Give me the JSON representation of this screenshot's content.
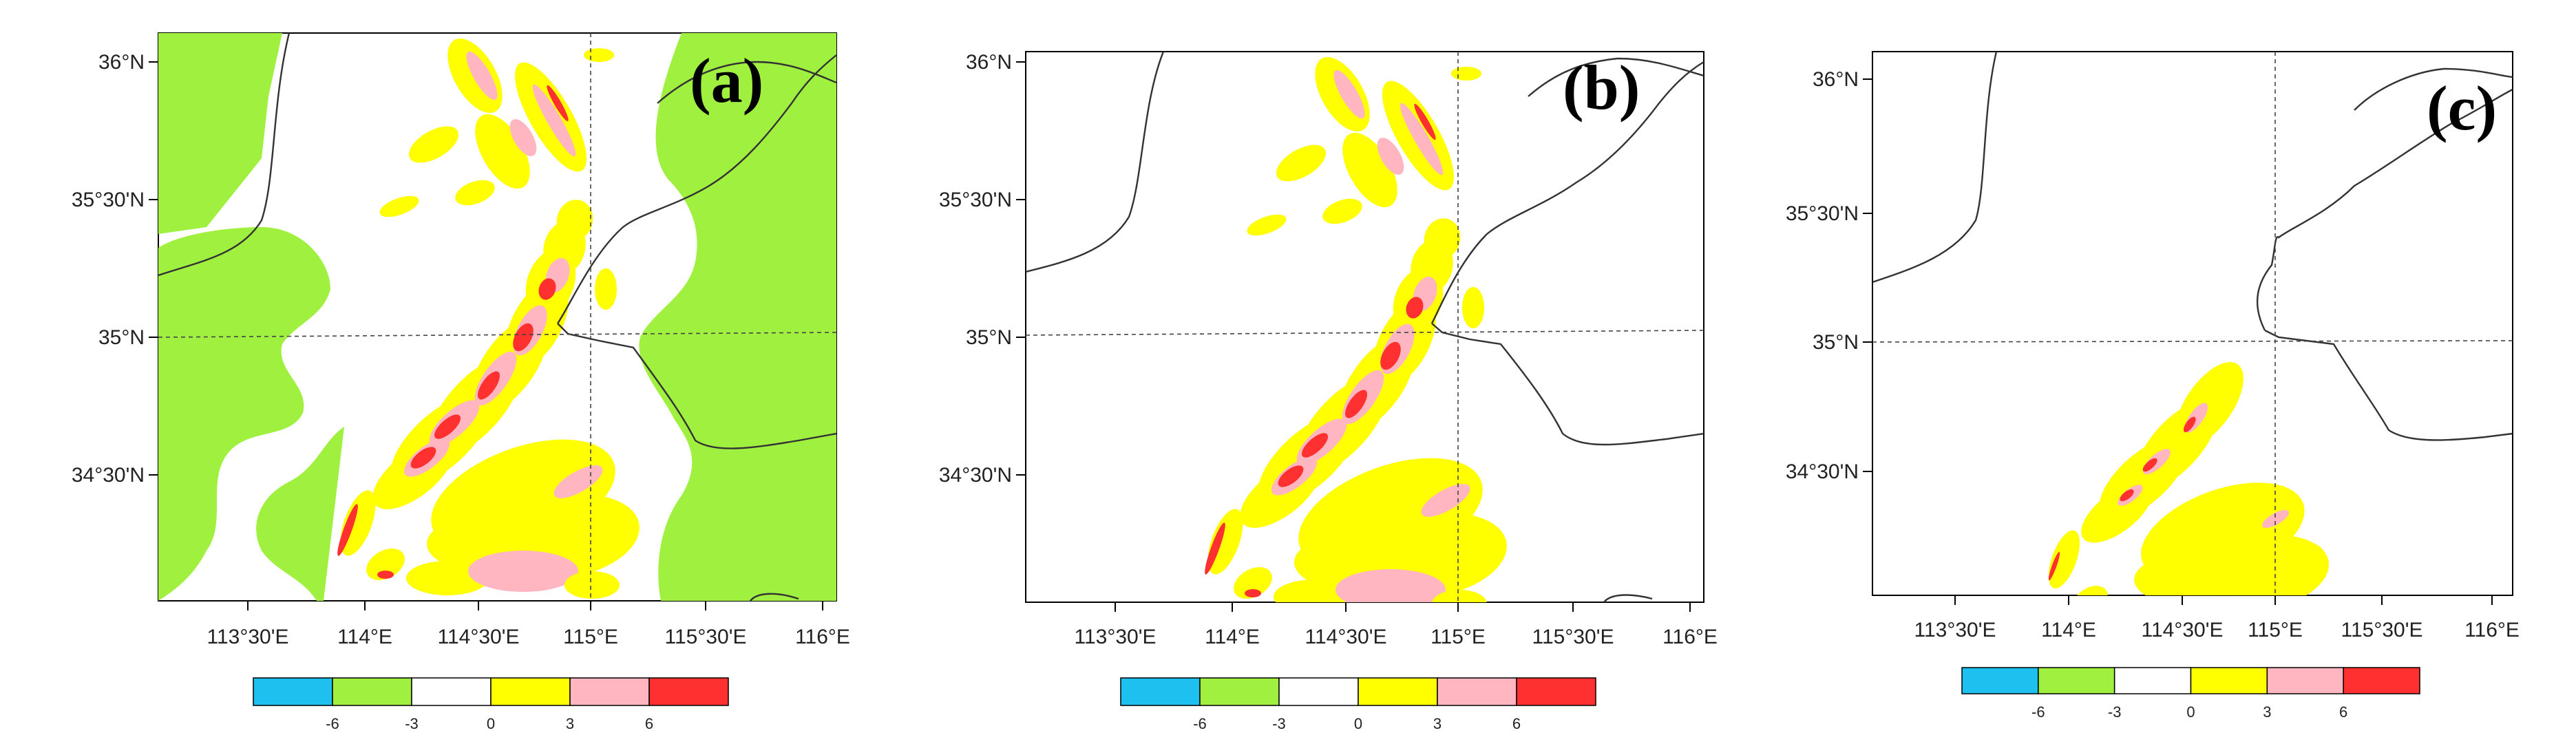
{
  "colorbar": {
    "colors": [
      "#1ec0f0",
      "#a0f040",
      "#ffffff",
      "#ffff00",
      "#ffb6c1",
      "#ff3030"
    ],
    "tick_labels": [
      "-6",
      "-3",
      "0",
      "3",
      "6"
    ]
  },
  "lat_labels": [
    "36°N",
    "35°30'N",
    "35°N",
    "34°30'N"
  ],
  "lon_labels": [
    "113°30'E",
    "114°E",
    "114°30'E",
    "115°E",
    "115°30'E",
    "116°E"
  ],
  "panels": [
    {
      "label": "(a)",
      "green_background": true,
      "intensity": 1.0
    },
    {
      "label": "(b)",
      "green_background": false,
      "intensity": 1.0
    },
    {
      "label": "(c)",
      "green_background": false,
      "intensity": 0.55
    }
  ]
}
